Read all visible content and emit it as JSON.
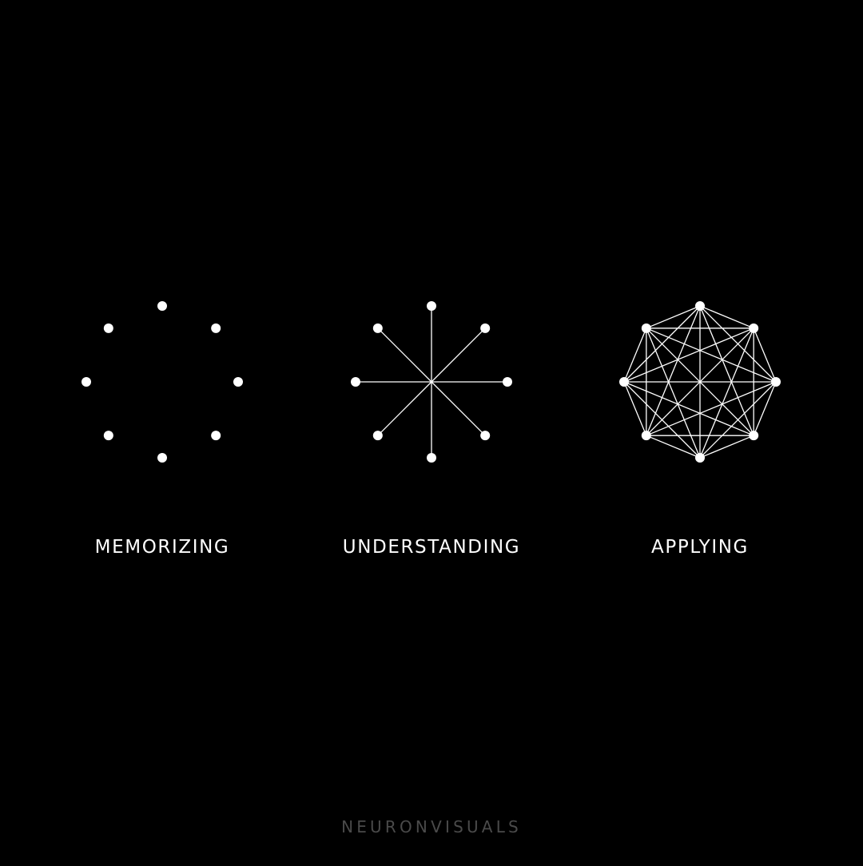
{
  "colors": {
    "background": "#000000",
    "foreground": "#ffffff",
    "footer": "#4a4a4a"
  },
  "panels": [
    {
      "label": "MEMORIZING",
      "nodes": 8,
      "connections": "none"
    },
    {
      "label": "UNDERSTANDING",
      "nodes": 8,
      "connections": "hub"
    },
    {
      "label": "APPLYING",
      "nodes": 8,
      "connections": "complete"
    }
  ],
  "footer": {
    "brand": "NEURONVISUALS"
  }
}
